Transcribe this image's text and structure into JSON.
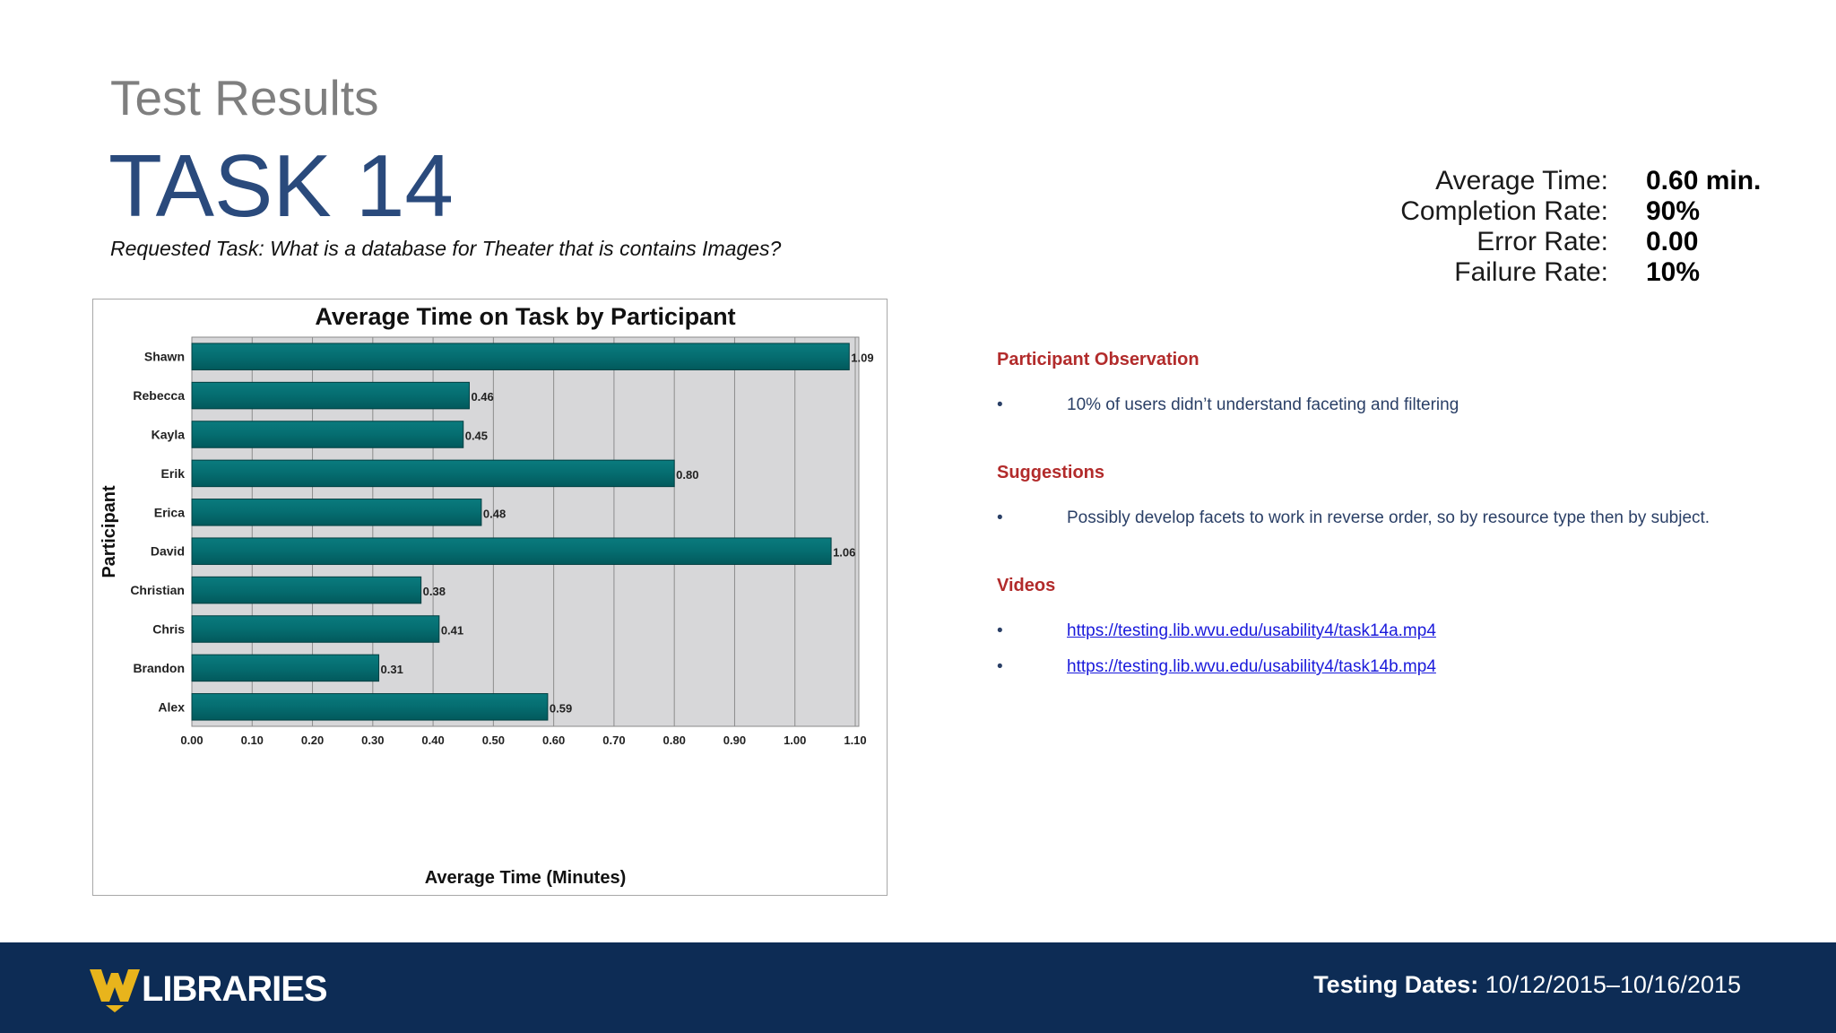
{
  "header": {
    "subtitle": "Test Results",
    "title": "TASK 14",
    "requested_task": "Requested Task: What is a database for Theater that is contains Images?"
  },
  "stats": [
    {
      "label": "Average Time:",
      "value": "0.60 min."
    },
    {
      "label": "Completion Rate:",
      "value": "90%"
    },
    {
      "label": "Error Rate:",
      "value": "0.00"
    },
    {
      "label": "Failure Rate:",
      "value": "10%"
    }
  ],
  "chart_data": {
    "type": "bar",
    "orientation": "horizontal",
    "title": "Average Time on Task by Participant",
    "xlabel": "Average Time (Minutes)",
    "ylabel": "Participant",
    "xlim": [
      0,
      1.1
    ],
    "xticks": [
      "0.00",
      "0.10",
      "0.20",
      "0.30",
      "0.40",
      "0.50",
      "0.60",
      "0.70",
      "0.80",
      "0.90",
      "1.00",
      "1.10"
    ],
    "categories": [
      "Shawn",
      "Rebecca",
      "Kayla",
      "Erik",
      "Erica",
      "David",
      "Christian",
      "Chris",
      "Brandon",
      "Alex"
    ],
    "values": [
      1.09,
      0.46,
      0.45,
      0.8,
      0.48,
      1.06,
      0.38,
      0.41,
      0.31,
      0.59
    ],
    "value_labels": [
      "1.09",
      "0.46",
      "0.45",
      "0.80",
      "0.48",
      "1.06",
      "0.38",
      "0.41",
      "0.31",
      "0.59"
    ],
    "bar_color": "#036b6e",
    "plot_bg": "#d7d7d9",
    "grid": true
  },
  "sections": {
    "observation": {
      "title": "Participant Observation",
      "items": [
        "10% of users didn’t understand faceting and filtering"
      ]
    },
    "suggestions": {
      "title": "Suggestions",
      "items": [
        "Possibly develop facets to work in reverse order, so by resource type then by subject."
      ]
    },
    "videos": {
      "title": "Videos",
      "links": [
        "https://testing.lib.wvu.edu/usability4/task14a.mp4",
        "https://testing.lib.wvu.edu/usability4/task14b.mp4"
      ]
    },
    "bullet": "•"
  },
  "footer": {
    "logo_text": "LIBRARIES",
    "dates_label": "Testing Dates:",
    "dates_value": " 10/12/2015–10/16/2015"
  },
  "colors": {
    "title_blue": "#2a4a7c",
    "section_red": "#b22b2b",
    "footer_navy": "#0d2c55",
    "logo_gold": "#e8b41c"
  }
}
